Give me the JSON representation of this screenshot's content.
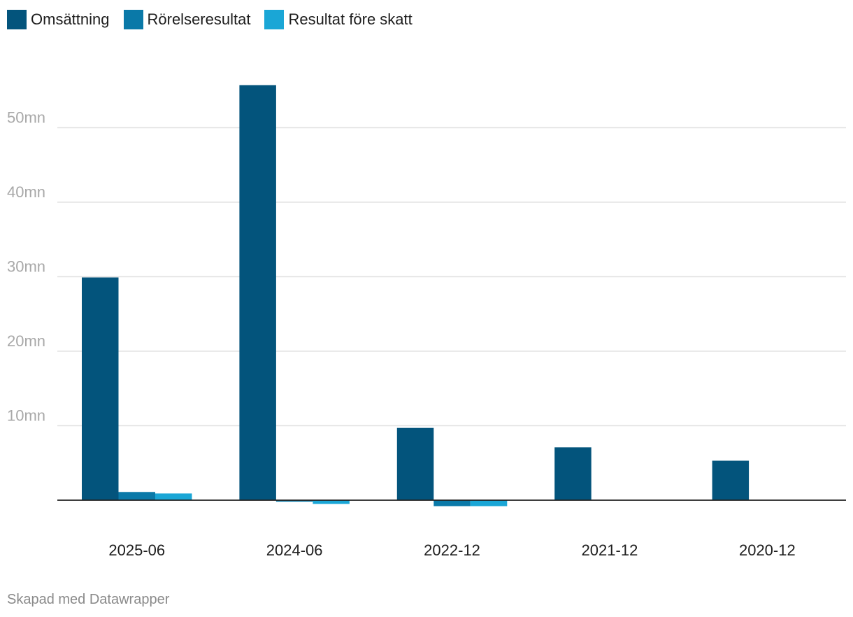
{
  "chart_data": {
    "type": "bar",
    "categories": [
      "2025-06",
      "2024-06",
      "2022-12",
      "2021-12",
      "2020-12"
    ],
    "series": [
      {
        "name": "Omsättning",
        "color": "#03547c",
        "values": [
          29.9,
          55.7,
          9.7,
          7.1,
          5.3
        ]
      },
      {
        "name": "Rörelseresultat",
        "color": "#0a79a8",
        "values": [
          1.1,
          -0.2,
          -0.8,
          0,
          0
        ]
      },
      {
        "name": "Resultat före skatt",
        "color": "#1aa6d6",
        "values": [
          0.9,
          -0.5,
          -0.8,
          0,
          0
        ]
      }
    ],
    "yticks": [
      {
        "value": 10,
        "label": "10mn"
      },
      {
        "value": 20,
        "label": "20mn"
      },
      {
        "value": 30,
        "label": "30mn"
      },
      {
        "value": 40,
        "label": "40mn"
      },
      {
        "value": 50,
        "label": "50mn"
      }
    ],
    "ylim": [
      -2,
      63
    ],
    "grid": true,
    "legend_position": "top-left"
  },
  "footer": {
    "credit": "Skapad med Datawrapper"
  }
}
